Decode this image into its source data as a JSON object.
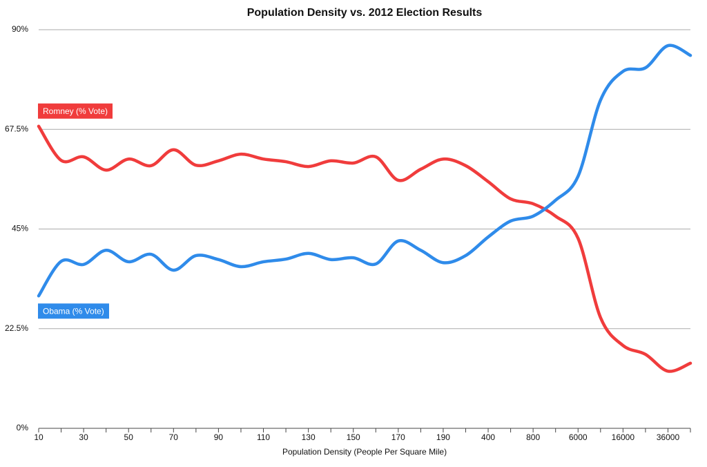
{
  "chart_data": {
    "type": "line",
    "title": "Population Density vs. 2012 Election Results",
    "x_label": "Population Density (People Per Square Mile)",
    "categories": [
      "10",
      null,
      "30",
      null,
      "50",
      null,
      "70",
      null,
      "90",
      null,
      "110",
      null,
      "130",
      null,
      "150",
      null,
      "170",
      null,
      "190",
      null,
      "400",
      null,
      "800",
      null,
      "6000",
      null,
      "16000",
      null,
      "36000",
      null
    ],
    "series": [
      {
        "name": "Romney (% Vote)",
        "color": "#f03c3c",
        "values": [
          68.2,
          60.5,
          61.3,
          58.3,
          60.8,
          59.3,
          62.9,
          59.4,
          60.4,
          61.9,
          60.8,
          60.2,
          59.1,
          60.4,
          59.9,
          61.3,
          56.0,
          58.5,
          60.8,
          59.3,
          55.7,
          51.8,
          50.7,
          47.9,
          42.9,
          25.0,
          18.7,
          16.7,
          12.9,
          14.7
        ]
      },
      {
        "name": "Obama (% Vote)",
        "color": "#2f8bea",
        "values": [
          29.9,
          37.7,
          37.0,
          40.2,
          37.6,
          39.3,
          35.7,
          39.0,
          38.1,
          36.5,
          37.6,
          38.2,
          39.5,
          38.1,
          38.5,
          37.1,
          42.3,
          40.2,
          37.4,
          39.0,
          43.2,
          46.8,
          47.9,
          51.5,
          56.9,
          74.1,
          80.6,
          81.4,
          86.4,
          84.2
        ]
      }
    ],
    "ylim": [
      0,
      90
    ],
    "yticks": [
      {
        "value": 0,
        "label": "0%"
      },
      {
        "value": 22.5,
        "label": "22.5%"
      },
      {
        "value": 45,
        "label": "45%"
      },
      {
        "value": 67.5,
        "label": "67.5%"
      },
      {
        "value": 90,
        "label": "90%"
      }
    ],
    "grid": true
  }
}
